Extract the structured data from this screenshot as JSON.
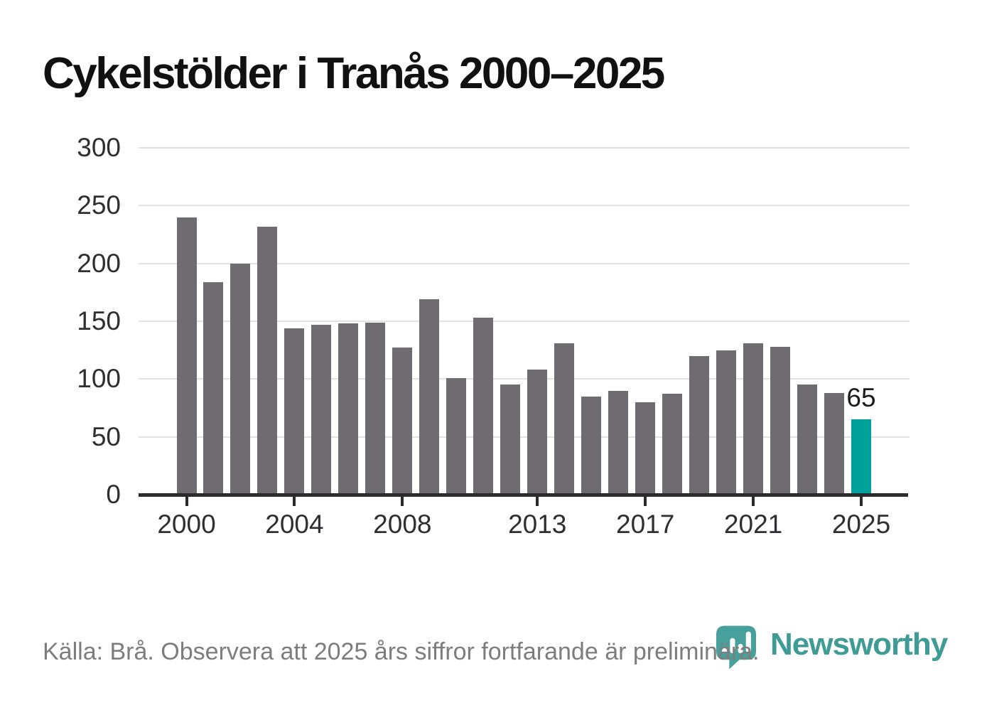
{
  "title": "Cykelstölder i Tranås 2000–2025",
  "chart_data": {
    "type": "bar",
    "title": "Cykelstölder i Tranås 2000–2025",
    "categories": [
      2000,
      2001,
      2002,
      2003,
      2004,
      2005,
      2006,
      2007,
      2008,
      2009,
      2010,
      2011,
      2012,
      2013,
      2014,
      2015,
      2016,
      2017,
      2018,
      2019,
      2020,
      2021,
      2022,
      2023,
      2024,
      2025
    ],
    "values": [
      240,
      184,
      200,
      232,
      144,
      147,
      148,
      149,
      127,
      169,
      101,
      153,
      95,
      108,
      131,
      85,
      90,
      80,
      87,
      120,
      125,
      131,
      128,
      95,
      88,
      65
    ],
    "highlight_index": 25,
    "highlight_value_label": "65",
    "xlabel": "",
    "ylabel": "",
    "ylim": [
      0,
      300
    ],
    "y_ticks": [
      0,
      50,
      100,
      150,
      200,
      250,
      300
    ],
    "x_tick_years": [
      2000,
      2004,
      2008,
      2013,
      2017,
      2021,
      2025
    ],
    "grid": "horizontal",
    "legend": "none",
    "bar_color": "#6e6c71",
    "highlight_color": "#00a09b",
    "gridline_color": "#e2e2e4",
    "axis_color": "#2b2b2e"
  },
  "footer": {
    "source_text": "Källa: Brå. Observera att 2025 års siffror fortfarande är preliminära."
  },
  "branding": {
    "logo_text": "Newsworthy",
    "logo_color": "#3f9b96",
    "logo_icon": "newsworthy-pin-barchart"
  }
}
